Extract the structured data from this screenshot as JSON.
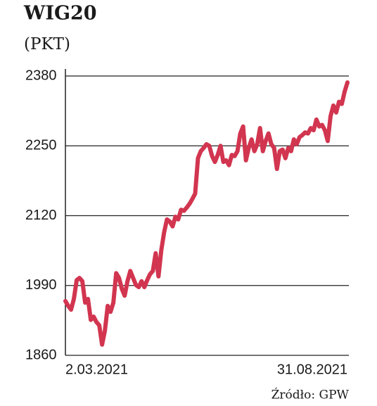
{
  "chart_data": {
    "type": "line",
    "title": "WIG20",
    "subtitle": "(PKT)",
    "source": "Źródło: GPW",
    "categories": [
      "2.03.2021",
      null,
      null,
      null,
      null,
      null,
      null,
      null,
      null,
      null,
      null,
      null,
      null,
      null,
      null,
      null,
      null,
      null,
      null,
      null,
      null,
      null,
      null,
      null,
      null,
      null,
      null,
      null,
      null,
      null,
      null,
      null,
      null,
      null,
      null,
      null,
      null,
      null,
      null,
      null,
      null,
      null,
      null,
      null,
      null,
      null,
      null,
      null,
      null,
      null,
      null,
      null,
      null,
      null,
      null,
      null,
      null,
      null,
      null,
      null,
      null,
      null,
      null,
      null,
      null,
      null,
      null,
      null,
      null,
      null,
      null,
      null,
      null,
      null,
      null,
      null,
      null,
      null,
      null,
      null,
      null,
      null,
      null,
      null,
      null,
      null,
      null,
      null,
      null,
      null,
      null,
      null,
      null,
      null,
      null,
      null,
      null,
      null,
      null,
      null,
      "31.08.2021"
    ],
    "values": [
      1961,
      1952,
      1945,
      1965,
      2000,
      2004,
      1998,
      1958,
      1965,
      1926,
      1932,
      1922,
      1916,
      1880,
      1906,
      1952,
      1941,
      1958,
      2013,
      2004,
      1984,
      1971,
      1998,
      2017,
      2004,
      1991,
      1987,
      1998,
      1987,
      2000,
      2011,
      2017,
      2050,
      2007,
      2056,
      2089,
      2113,
      2109,
      2100,
      2118,
      2113,
      2131,
      2129,
      2135,
      2142,
      2151,
      2161,
      2227,
      2240,
      2246,
      2253,
      2250,
      2231,
      2220,
      2233,
      2250,
      2220,
      2223,
      2214,
      2233,
      2231,
      2240,
      2273,
      2286,
      2223,
      2246,
      2262,
      2240,
      2253,
      2283,
      2240,
      2259,
      2273,
      2253,
      2246,
      2207,
      2240,
      2243,
      2227,
      2246,
      2240,
      2262,
      2253,
      2266,
      2270,
      2275,
      2273,
      2283,
      2279,
      2299,
      2286,
      2289,
      2279,
      2259,
      2305,
      2325,
      2312,
      2332,
      2328,
      2351,
      2368
    ],
    "color": "#d2354f",
    "ylim": [
      1860,
      2380
    ],
    "yticks": [
      1860,
      1990,
      2120,
      2250,
      2380
    ],
    "grid": true
  }
}
